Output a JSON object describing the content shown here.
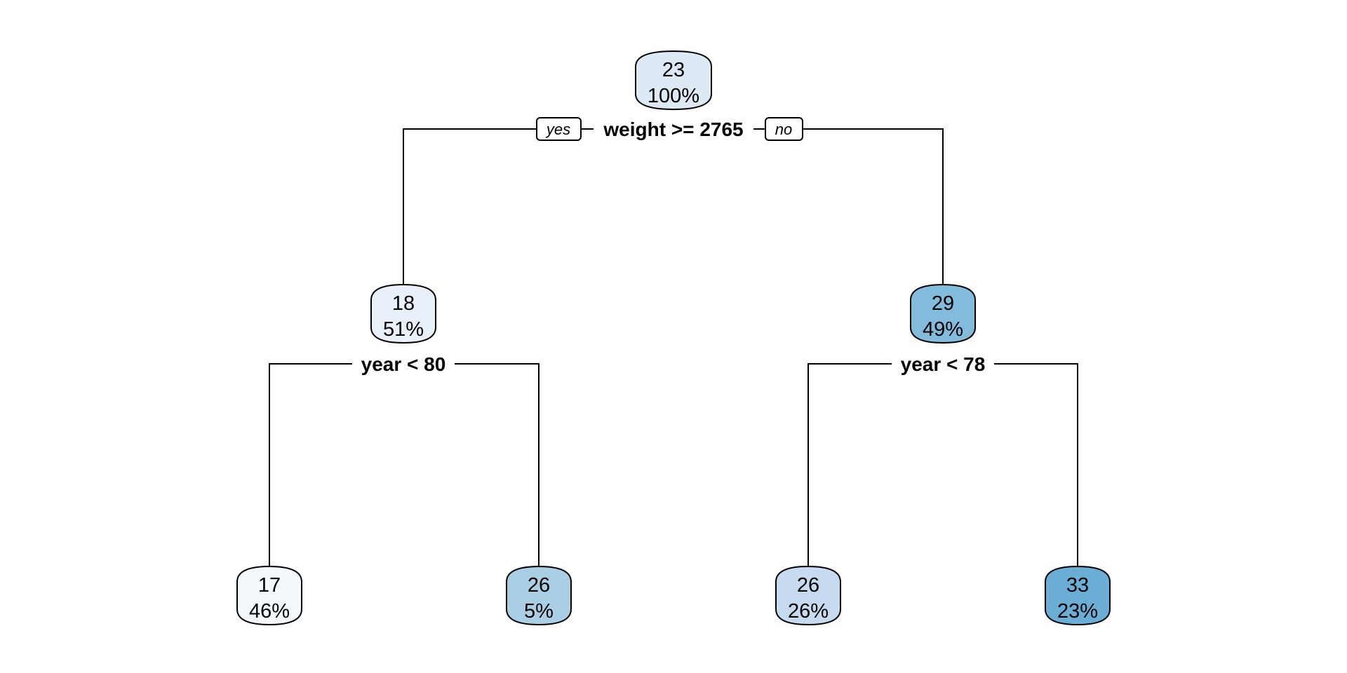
{
  "tree": {
    "root": {
      "value": "23",
      "percent": "100%",
      "color": "#dde9f5"
    },
    "root_split": {
      "label": "weight >= 2765",
      "yes_label": "yes",
      "no_label": "no"
    },
    "left": {
      "value": "18",
      "percent": "51%",
      "color": "#e8f1fa",
      "split": "year < 80"
    },
    "right": {
      "value": "29",
      "percent": "49%",
      "color": "#82bbdc",
      "split": "year < 78"
    },
    "leaves": [
      {
        "value": "17",
        "percent": "46%",
        "color": "#f4f8fd"
      },
      {
        "value": "26",
        "percent": "5%",
        "color": "#aacfe5"
      },
      {
        "value": "26",
        "percent": "26%",
        "color": "#c6dbef"
      },
      {
        "value": "33",
        "percent": "23%",
        "color": "#6aaed6"
      }
    ]
  }
}
